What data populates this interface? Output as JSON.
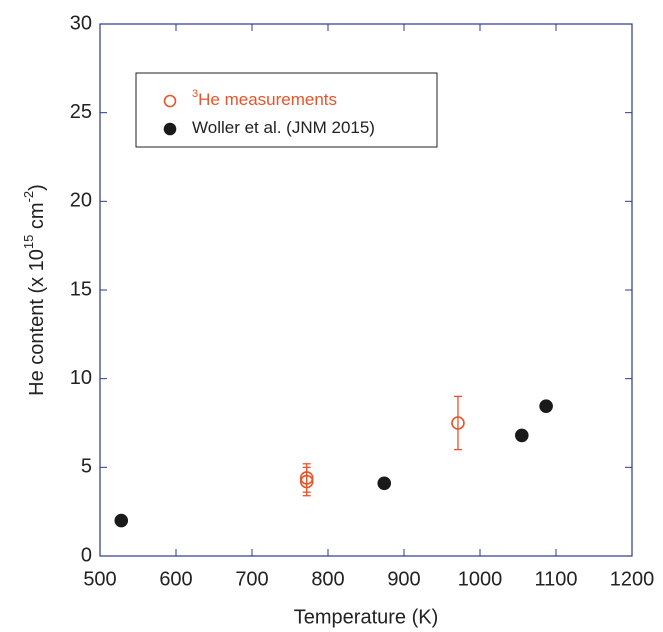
{
  "chart_data": {
    "type": "scatter",
    "xlabel": "Temperature (K)",
    "ylabel": [
      "He content (x 10",
      "15",
      " cm",
      "-2",
      ")"
    ],
    "xlim": [
      500,
      1200
    ],
    "xticks": [
      500,
      600,
      700,
      800,
      900,
      1000,
      1100,
      1200
    ],
    "ylim": [
      0,
      30
    ],
    "yticks": [
      0,
      5,
      10,
      15,
      20,
      25,
      30
    ],
    "series": [
      {
        "name": [
          "3",
          "He measurements"
        ],
        "color": "#e8542a",
        "marker": "open",
        "x": [
          772,
          772,
          971
        ],
        "values": [
          4.4,
          4.2,
          7.5
        ],
        "errors": [
          0.8,
          0.8,
          1.5
        ]
      },
      {
        "name": [
          "Woller et al. (JNM 2015)"
        ],
        "color": "#1a1a1a",
        "marker": "filled",
        "x": [
          528,
          874,
          1055,
          1087
        ],
        "values": [
          2.0,
          4.1,
          6.8,
          8.45
        ]
      }
    ]
  }
}
